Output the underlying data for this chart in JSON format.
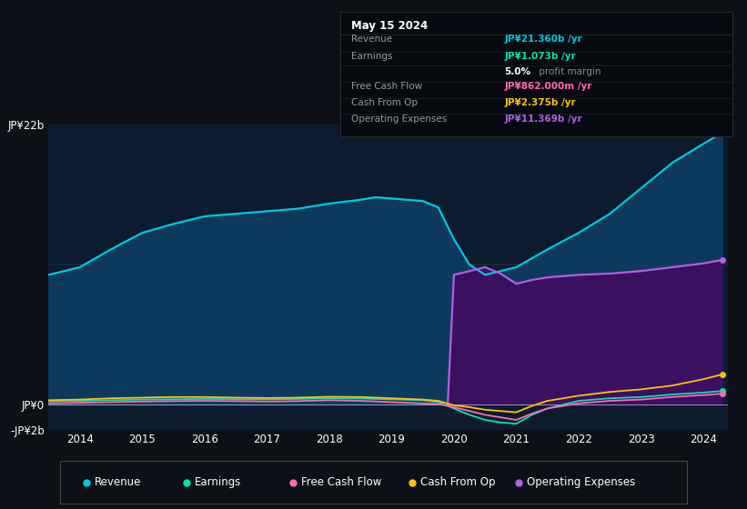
{
  "bg_color": "#0d1117",
  "plot_bg_color": "#0d1b2e",
  "tooltip_bg": "#000000",
  "years_x": [
    2013.5,
    2014.0,
    2014.5,
    2015.0,
    2015.5,
    2016.0,
    2016.5,
    2017.0,
    2017.5,
    2018.0,
    2018.5,
    2018.75,
    2019.0,
    2019.5,
    2019.75,
    2020.0,
    2020.25,
    2020.5,
    2020.75,
    2021.0,
    2021.25,
    2021.5,
    2022.0,
    2022.5,
    2023.0,
    2023.5,
    2024.0,
    2024.3
  ],
  "revenue": [
    10.2,
    10.8,
    12.2,
    13.5,
    14.2,
    14.8,
    15.0,
    15.2,
    15.4,
    15.8,
    16.1,
    16.3,
    16.2,
    16.0,
    15.5,
    13.0,
    11.0,
    10.2,
    10.5,
    10.8,
    11.5,
    12.2,
    13.5,
    15.0,
    17.0,
    19.0,
    20.5,
    21.36
  ],
  "earnings": [
    0.25,
    0.3,
    0.35,
    0.4,
    0.42,
    0.45,
    0.42,
    0.42,
    0.45,
    0.5,
    0.48,
    0.45,
    0.42,
    0.35,
    0.2,
    -0.3,
    -0.8,
    -1.2,
    -1.4,
    -1.5,
    -0.8,
    -0.3,
    0.3,
    0.5,
    0.6,
    0.8,
    0.95,
    1.073
  ],
  "free_cash_flow": [
    0.1,
    0.15,
    0.2,
    0.25,
    0.28,
    0.3,
    0.28,
    0.25,
    0.28,
    0.35,
    0.3,
    0.25,
    0.2,
    0.1,
    0.05,
    -0.2,
    -0.5,
    -0.8,
    -1.0,
    -1.2,
    -0.7,
    -0.3,
    0.1,
    0.3,
    0.4,
    0.6,
    0.75,
    0.862
  ],
  "cash_from_op": [
    0.35,
    0.4,
    0.5,
    0.55,
    0.6,
    0.6,
    0.55,
    0.52,
    0.55,
    0.62,
    0.6,
    0.55,
    0.5,
    0.4,
    0.3,
    -0.05,
    -0.2,
    -0.4,
    -0.5,
    -0.6,
    -0.1,
    0.3,
    0.7,
    1.0,
    1.2,
    1.5,
    2.0,
    2.375
  ],
  "op_expenses_x": [
    2019.9,
    2020.0,
    2020.25,
    2020.5,
    2020.75,
    2021.0,
    2021.25,
    2021.5,
    2022.0,
    2022.5,
    2023.0,
    2023.5,
    2024.0,
    2024.3
  ],
  "op_expenses": [
    0.0,
    10.2,
    10.5,
    10.8,
    10.3,
    9.5,
    9.8,
    10.0,
    10.2,
    10.3,
    10.5,
    10.8,
    11.1,
    11.369
  ],
  "ylim_top": 22,
  "ylim_bottom": -2,
  "xlim_left": 2013.5,
  "xlim_right": 2024.4,
  "revenue_color": "#00c8e0",
  "earnings_color": "#00e5b0",
  "fcf_color": "#ff69b4",
  "cash_op_color": "#ffc107",
  "op_exp_color": "#b060e0",
  "revenue_fill_color": "#0d3a5c",
  "op_exp_fill_color": "#3a1060",
  "grid_color": "#ffffff",
  "annotation_revenue_color": "#00c8e0",
  "annotation_earnings_color": "#00e5b0",
  "annotation_fcf_color": "#ff69b4",
  "annotation_cashop_color": "#ffc107",
  "annotation_opexp_color": "#b060e0",
  "xtick_years": [
    2014,
    2015,
    2016,
    2017,
    2018,
    2019,
    2020,
    2021,
    2022,
    2023,
    2024
  ],
  "tooltip_rows": [
    {
      "label": "Revenue",
      "value": "JP¥21.360b /yr",
      "color": "#00c8e0"
    },
    {
      "label": "Earnings",
      "value": "JP¥1.073b /yr",
      "color": "#00e5b0"
    },
    {
      "label": "",
      "value": "5.0% profit margin",
      "color": "#888888"
    },
    {
      "label": "Free Cash Flow",
      "value": "JP¥862.000m /yr",
      "color": "#ff69b4"
    },
    {
      "label": "Cash From Op",
      "value": "JP¥2.375b /yr",
      "color": "#ffc107"
    },
    {
      "label": "Operating Expenses",
      "value": "JP¥11.369b /yr",
      "color": "#b060e0"
    }
  ],
  "legend_items": [
    {
      "color": "#00c8e0",
      "label": "Revenue"
    },
    {
      "color": "#00e5b0",
      "label": "Earnings"
    },
    {
      "color": "#ff69b4",
      "label": "Free Cash Flow"
    },
    {
      "color": "#ffc107",
      "label": "Cash From Op"
    },
    {
      "color": "#b060e0",
      "label": "Operating Expenses"
    }
  ]
}
